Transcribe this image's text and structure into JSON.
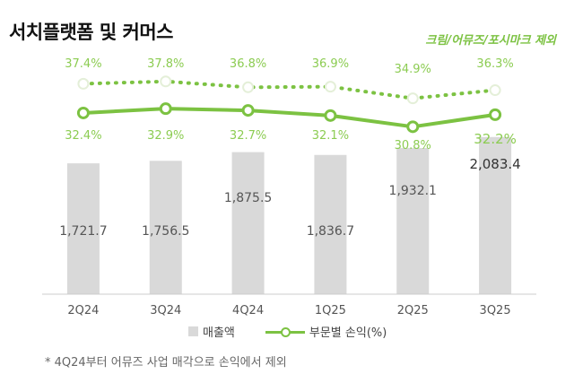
{
  "header": {
    "title": "서치플랫폼 및 커머스",
    "subtitle": "크림/어뮤즈/포시마크 제외"
  },
  "footnote": "* 4Q24부터 어뮤즈 사업 매각으로 손익에서 제외",
  "legend": {
    "bar_label": "매출액",
    "line_label": "부문별 손익(%)"
  },
  "colors": {
    "bar": "#d9d9d9",
    "line": "#7cc242",
    "label_green": "#8ccc52",
    "axis": "#cccccc",
    "text": "#555555"
  },
  "chart_data": {
    "type": "bar",
    "categories": [
      "2Q24",
      "3Q24",
      "4Q24",
      "1Q25",
      "2Q25",
      "3Q25"
    ],
    "series": [
      {
        "name": "매출액",
        "type": "bar",
        "values": [
          1721.7,
          1756.5,
          1875.5,
          1836.7,
          1932.1,
          2083.4
        ],
        "labels": [
          "1,721.7",
          "1,756.5",
          "1,875.5",
          "1,836.7",
          "1,932.1",
          "2,083.4"
        ]
      },
      {
        "name": "부문별 손익(%)",
        "type": "line",
        "style": "solid",
        "values": [
          32.4,
          32.9,
          32.7,
          32.1,
          30.8,
          32.2
        ],
        "labels": [
          "32.4%",
          "32.9%",
          "32.7%",
          "32.1%",
          "30.8%",
          "32.2%"
        ]
      },
      {
        "name": "크림/어뮤즈/포시마크 제외",
        "type": "line",
        "style": "dotted",
        "values": [
          37.4,
          37.8,
          36.8,
          36.9,
          34.9,
          36.3
        ],
        "labels": [
          "37.4%",
          "37.8%",
          "36.8%",
          "36.9%",
          "34.9%",
          "36.3%"
        ]
      }
    ],
    "title": "서치플랫폼 및 커머스",
    "xlabel": "",
    "ylabel": ""
  }
}
